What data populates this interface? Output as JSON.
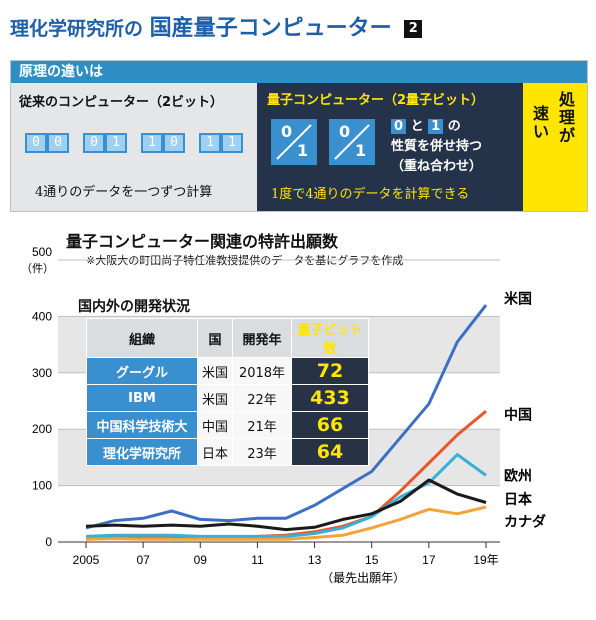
{
  "header": {
    "title_a": "理化学研究所の",
    "title_b": "国産量子コンピューター",
    "badge": "2"
  },
  "principle": {
    "heading": "原理の違いは",
    "classic_title": "従来のコンピューター（2ビット）",
    "classic_bits": [
      [
        "0",
        "0"
      ],
      [
        "0",
        "1"
      ],
      [
        "1",
        "0"
      ],
      [
        "1",
        "1"
      ]
    ],
    "classic_caption": "4通りのデータを一つずつ計算",
    "quantum_title": "量子コンピューター（2量子ビット）",
    "qubit_top": "0",
    "qubit_bottom": "1",
    "superposition_zero": "0",
    "superposition_and": "と",
    "superposition_one": "1",
    "superposition_no": "の",
    "superposition_line2": "性質を併せ持つ",
    "superposition_line3": "（重ね合わせ）",
    "quantum_caption": "1度で4通りのデータを計算できる",
    "fast_a": "処理が",
    "fast_b": "速い"
  },
  "chart_data": {
    "type": "line",
    "title": "量子コンピューター関連の特許出願数",
    "note": "※大阪大の町田尚子特任准教授提供のデータを基にグラフを作成",
    "ylabel": "500\n（件）",
    "xlabel": "（最先出願年）",
    "ylim": [
      0,
      500
    ],
    "yticks": [
      "0",
      "100",
      "200",
      "300",
      "400",
      "500"
    ],
    "xticks": [
      {
        "x": 2005,
        "label": "2005"
      },
      {
        "x": 2007,
        "label": "07"
      },
      {
        "x": 2009,
        "label": "09"
      },
      {
        "x": 2011,
        "label": "11"
      },
      {
        "x": 2013,
        "label": "13"
      },
      {
        "x": 2015,
        "label": "15"
      },
      {
        "x": 2017,
        "label": "17"
      },
      {
        "x": 2019,
        "label": "19年"
      }
    ],
    "x": [
      2005,
      2006,
      2007,
      2008,
      2009,
      2010,
      2011,
      2012,
      2013,
      2014,
      2015,
      2016,
      2017,
      2018,
      2019
    ],
    "series": [
      {
        "name": "米国",
        "color": "#3d6fc4",
        "values": [
          25,
          38,
          42,
          55,
          40,
          38,
          42,
          42,
          65,
          95,
          125,
          185,
          245,
          355,
          420
        ]
      },
      {
        "name": "中国",
        "color": "#e8582e",
        "values": [
          5,
          8,
          10,
          10,
          8,
          8,
          10,
          12,
          18,
          28,
          45,
          90,
          140,
          190,
          232
        ]
      },
      {
        "name": "欧州",
        "color": "#3ab0d6",
        "values": [
          10,
          12,
          12,
          12,
          10,
          10,
          10,
          10,
          15,
          25,
          45,
          80,
          105,
          155,
          118
        ]
      },
      {
        "name": "日本",
        "color": "#1a1a1a",
        "values": [
          28,
          30,
          28,
          30,
          28,
          32,
          28,
          22,
          26,
          40,
          50,
          72,
          110,
          85,
          70
        ]
      },
      {
        "name": "カナダ",
        "color": "#f2a33a",
        "values": [
          5,
          6,
          5,
          5,
          5,
          5,
          5,
          5,
          8,
          12,
          25,
          40,
          58,
          50,
          62
        ]
      }
    ]
  },
  "dev_table": {
    "title": "国内外の開発状況",
    "headers": [
      "組織",
      "国",
      "開発年",
      "量子ビット数"
    ],
    "rows": [
      [
        "グーグル",
        "米国",
        "2018年",
        "72"
      ],
      [
        "IBM",
        "米国",
        "22年",
        "433"
      ],
      [
        "中国科学技術大",
        "中国",
        "21年",
        "66"
      ],
      [
        "理化学研究所",
        "日本",
        "23年",
        "64"
      ]
    ]
  }
}
